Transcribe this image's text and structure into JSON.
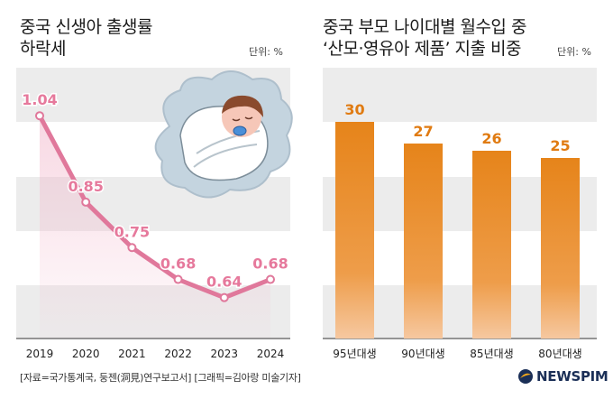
{
  "chart_data": [
    {
      "type": "line",
      "title": "중국 신생아 출생률\n하락세",
      "unit": "단위: %",
      "x": [
        "2019",
        "2020",
        "2021",
        "2022",
        "2023",
        "2024"
      ],
      "values": [
        1.04,
        0.85,
        0.75,
        0.68,
        0.64,
        0.68
      ],
      "data_labels": [
        "1.04",
        "0.85",
        "0.75",
        "0.68",
        "0.64",
        "0.68"
      ],
      "ylim": [
        0.55,
        1.1
      ],
      "color": "#e0789b",
      "grid": "horizontal bands"
    },
    {
      "type": "bar",
      "title": "중국 부모 나이대별 월수입 중\n‘산모·영유아 제품’ 지출 비중",
      "unit": "단위: %",
      "categories": [
        "95년대생",
        "90년대생",
        "85년대생",
        "80년대생"
      ],
      "values": [
        30,
        27,
        26,
        25
      ],
      "data_labels": [
        "30",
        "27",
        "26",
        "25"
      ],
      "ylim": [
        0,
        30
      ],
      "color": "#e88a1f",
      "grid": "horizontal bands"
    }
  ],
  "footer": {
    "source": "[자료=국가통계국, 둥젠(洞見)연구보고서] [그래픽=김아랑 미술기자]",
    "brand": "NEWSPIM"
  },
  "colors": {
    "band": "#ececec",
    "line": "#e0789b",
    "line_label": "#e6799c",
    "bar": "#e88a1f",
    "bar_label": "#e07b12",
    "brand": "#1b2f57"
  },
  "icons": [
    "baby-cloud-illustration",
    "newspim-logo-icon"
  ]
}
